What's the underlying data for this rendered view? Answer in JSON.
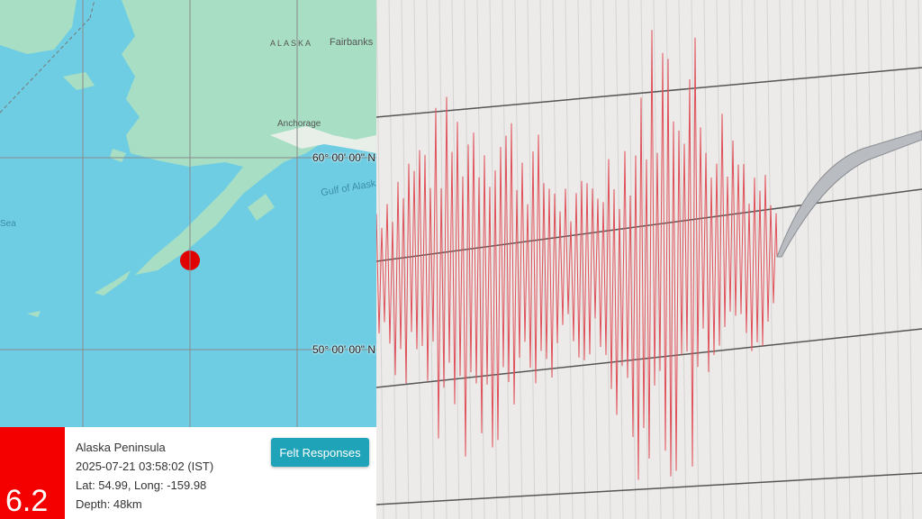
{
  "map": {
    "labels": {
      "region": "ALASKA",
      "city1": "Fairbanks",
      "city2": "Anchorage",
      "gulf": "Gulf of Alask",
      "sea": "Sea"
    },
    "lat_labels": [
      "60° 00' 00\" N",
      "50° 00' 00\" N"
    ],
    "colors": {
      "sea": "#6fcde3",
      "land": "#a8dfc4",
      "marker": "#e00000"
    }
  },
  "event": {
    "magnitude": "6.2",
    "place": "Alaska Peninsula",
    "time": "2025-07-21 03:58:02 (IST)",
    "coords": "Lat: 54.99, Long: -159.98",
    "depth": "Depth: 48km",
    "felt_button": "Felt Responses"
  },
  "seismograph": {
    "trace_color": "#e0505a",
    "paper_color": "#ecebe9"
  }
}
